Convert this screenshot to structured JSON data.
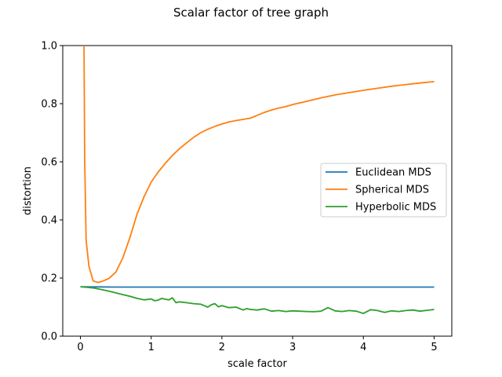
{
  "chart_data": {
    "type": "line",
    "title": "Scalar factor of tree graph",
    "xlabel": "scale factor",
    "ylabel": "distortion",
    "xlim": [
      -0.25,
      5.25
    ],
    "ylim": [
      0.0,
      1.0
    ],
    "xticks": [
      0,
      1,
      2,
      3,
      4,
      5
    ],
    "xtick_labels": [
      "0",
      "1",
      "2",
      "3",
      "4",
      "5"
    ],
    "yticks": [
      0.0,
      0.2,
      0.4,
      0.6,
      0.8,
      1.0
    ],
    "ytick_labels": [
      "0.0",
      "0.2",
      "0.4",
      "0.6",
      "0.8",
      "1.0"
    ],
    "grid": false,
    "legend_position": "center-right",
    "series": [
      {
        "name": "Euclidean MDS",
        "color": "#1f77b4",
        "x": [
          0.0,
          0.5,
          1.0,
          1.5,
          2.0,
          2.5,
          3.0,
          3.5,
          4.0,
          4.5,
          5.0
        ],
        "values": [
          0.17,
          0.169,
          0.169,
          0.169,
          0.169,
          0.169,
          0.169,
          0.169,
          0.169,
          0.169,
          0.169
        ]
      },
      {
        "name": "Spherical MDS",
        "color": "#ff7f0e",
        "x": [
          0.05,
          0.06,
          0.08,
          0.12,
          0.18,
          0.25,
          0.3,
          0.4,
          0.5,
          0.6,
          0.7,
          0.8,
          0.9,
          1.0,
          1.1,
          1.2,
          1.3,
          1.4,
          1.5,
          1.6,
          1.7,
          1.8,
          1.9,
          2.0,
          2.1,
          2.2,
          2.3,
          2.4,
          2.5,
          2.6,
          2.7,
          2.8,
          2.9,
          3.0,
          3.2,
          3.4,
          3.6,
          3.8,
          4.0,
          4.2,
          4.4,
          4.6,
          4.8,
          5.0
        ],
        "values": [
          1.0,
          0.6,
          0.33,
          0.24,
          0.19,
          0.185,
          0.188,
          0.198,
          0.22,
          0.27,
          0.34,
          0.42,
          0.48,
          0.53,
          0.565,
          0.595,
          0.622,
          0.645,
          0.665,
          0.684,
          0.7,
          0.712,
          0.722,
          0.73,
          0.737,
          0.742,
          0.746,
          0.75,
          0.76,
          0.77,
          0.778,
          0.785,
          0.79,
          0.797,
          0.808,
          0.82,
          0.83,
          0.838,
          0.846,
          0.853,
          0.86,
          0.866,
          0.871,
          0.876
        ]
      },
      {
        "name": "Hyperbolic MDS",
        "color": "#2ca02c",
        "x": [
          0.0,
          0.1,
          0.2,
          0.3,
          0.4,
          0.5,
          0.6,
          0.7,
          0.8,
          0.9,
          1.0,
          1.05,
          1.1,
          1.15,
          1.2,
          1.25,
          1.3,
          1.35,
          1.4,
          1.5,
          1.6,
          1.7,
          1.8,
          1.85,
          1.9,
          1.95,
          2.0,
          2.1,
          2.2,
          2.3,
          2.35,
          2.4,
          2.5,
          2.6,
          2.7,
          2.8,
          2.9,
          3.0,
          3.1,
          3.2,
          3.3,
          3.4,
          3.5,
          3.6,
          3.7,
          3.8,
          3.9,
          4.0,
          4.1,
          4.2,
          4.3,
          4.4,
          4.5,
          4.6,
          4.7,
          4.8,
          4.9,
          5.0
        ],
        "values": [
          0.17,
          0.168,
          0.165,
          0.16,
          0.155,
          0.149,
          0.143,
          0.137,
          0.13,
          0.125,
          0.128,
          0.122,
          0.124,
          0.13,
          0.127,
          0.125,
          0.132,
          0.115,
          0.118,
          0.115,
          0.112,
          0.11,
          0.1,
          0.108,
          0.112,
          0.101,
          0.105,
          0.098,
          0.1,
          0.09,
          0.095,
          0.092,
          0.09,
          0.094,
          0.086,
          0.088,
          0.085,
          0.087,
          0.086,
          0.085,
          0.084,
          0.086,
          0.098,
          0.087,
          0.085,
          0.088,
          0.086,
          0.078,
          0.091,
          0.088,
          0.082,
          0.087,
          0.085,
          0.088,
          0.09,
          0.086,
          0.089,
          0.092
        ]
      }
    ]
  }
}
